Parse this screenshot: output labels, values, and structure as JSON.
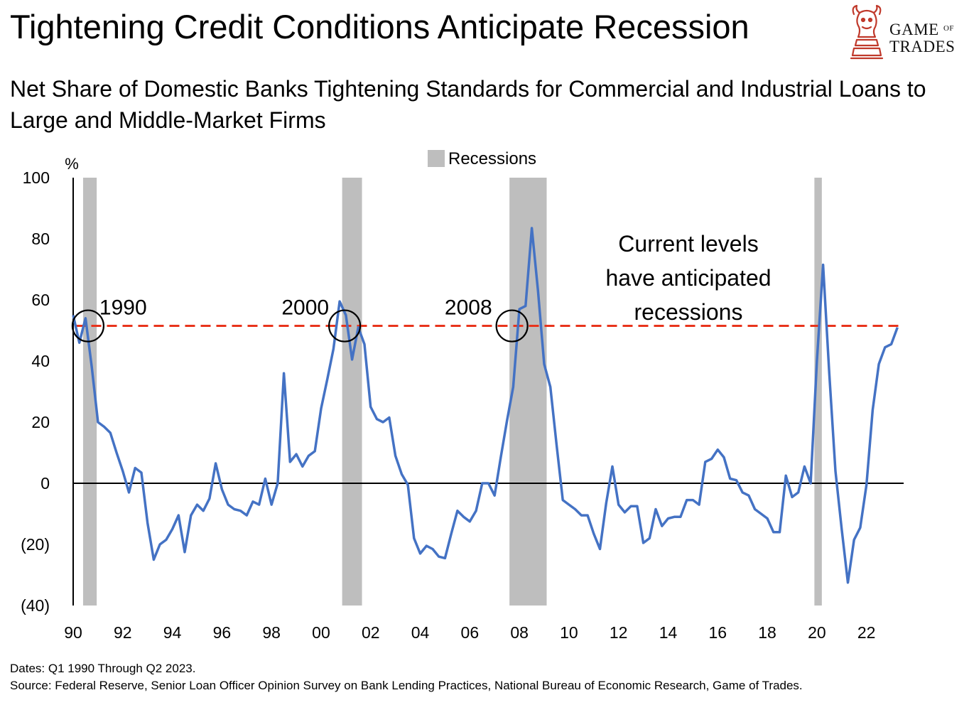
{
  "header": {
    "title": "Tightening Credit Conditions Anticipate Recession",
    "subtitle": "Net Share of Domestic Banks Tightening Standards for Commercial and Industrial Loans to Large and Middle-Market Firms"
  },
  "logo": {
    "line1": "GAME",
    "of": "OF",
    "line2": "TRADES",
    "icon": "bull-chess-knight-icon"
  },
  "footer": {
    "dates": "Dates: Q1 1990 Through Q2 2023.",
    "source": "Source: Federal Reserve, Senior Loan Officer Opinion Survey on Bank Lending Practices, National Bureau of Economic Research, Game of Trades."
  },
  "colors": {
    "line": "#4472C4",
    "recession": "#BEBEBE",
    "threshold": "#E8341C",
    "axis": "#000000"
  },
  "chart_data": {
    "type": "line",
    "title": "Net Share of Domestic Banks Tightening Standards for Commercial and Industrial Loans to Large and Middle-Market Firms",
    "ylabel": "%",
    "ylim": [
      -40,
      100
    ],
    "xlim": [
      1990,
      2023.5
    ],
    "yticks": [
      100,
      80,
      60,
      40,
      20,
      0,
      -20,
      -40
    ],
    "ytick_labels": [
      "100",
      "80",
      "60",
      "40",
      "20",
      "0",
      "(20)",
      "(40)"
    ],
    "xtick_labels": [
      "90",
      "92",
      "94",
      "96",
      "98",
      "00",
      "02",
      "04",
      "06",
      "08",
      "10",
      "12",
      "14",
      "16",
      "18",
      "20",
      "22"
    ],
    "xtick_years": [
      1990,
      1992,
      1994,
      1996,
      1998,
      2000,
      2002,
      2004,
      2006,
      2008,
      2010,
      2012,
      2014,
      2016,
      2018,
      2020,
      2022
    ],
    "legend": {
      "label": "Recessions",
      "position": "top-center"
    },
    "recessions": [
      {
        "start": 1990.4,
        "end": 1990.95
      },
      {
        "start": 2000.85,
        "end": 2001.65
      },
      {
        "start": 2007.6,
        "end": 2009.1
      },
      {
        "start": 2019.9,
        "end": 2020.2
      }
    ],
    "threshold": {
      "value": 51.5,
      "from": 1990.1
    },
    "series": [
      {
        "name": "Net share tightening (large and middle-market firms)",
        "x": [
          1990.0,
          1990.25,
          1990.5,
          1990.75,
          1991.0,
          1991.25,
          1991.5,
          1991.75,
          1992.0,
          1992.25,
          1992.5,
          1992.75,
          1993.0,
          1993.25,
          1993.5,
          1993.75,
          1994.0,
          1994.25,
          1994.5,
          1994.75,
          1995.0,
          1995.25,
          1995.5,
          1995.75,
          1996.0,
          1996.25,
          1996.5,
          1996.75,
          1997.0,
          1997.25,
          1997.5,
          1997.75,
          1998.0,
          1998.25,
          1998.5,
          1998.75,
          1999.0,
          1999.25,
          1999.5,
          1999.75,
          2000.0,
          2000.25,
          2000.5,
          2000.75,
          2001.0,
          2001.25,
          2001.5,
          2001.75,
          2002.0,
          2002.25,
          2002.5,
          2002.75,
          2003.0,
          2003.25,
          2003.5,
          2003.75,
          2004.0,
          2004.25,
          2004.5,
          2004.75,
          2005.0,
          2005.25,
          2005.5,
          2005.75,
          2006.0,
          2006.25,
          2006.5,
          2006.75,
          2007.0,
          2007.25,
          2007.5,
          2007.75,
          2008.0,
          2008.25,
          2008.5,
          2008.75,
          2009.0,
          2009.25,
          2009.5,
          2009.75,
          2010.0,
          2010.25,
          2010.5,
          2010.75,
          2011.0,
          2011.25,
          2011.5,
          2011.75,
          2012.0,
          2012.25,
          2012.5,
          2012.75,
          2013.0,
          2013.25,
          2013.5,
          2013.75,
          2014.0,
          2014.25,
          2014.5,
          2014.75,
          2015.0,
          2015.25,
          2015.5,
          2015.75,
          2016.0,
          2016.25,
          2016.5,
          2016.75,
          2017.0,
          2017.25,
          2017.5,
          2017.75,
          2018.0,
          2018.25,
          2018.5,
          2018.75,
          2019.0,
          2019.25,
          2019.5,
          2019.75,
          2020.0,
          2020.25,
          2020.5,
          2020.75,
          2021.0,
          2021.25,
          2021.5,
          2021.75,
          2022.0,
          2022.25,
          2022.5,
          2022.75,
          2023.0,
          2023.25
        ],
        "y": [
          55,
          46,
          54,
          38,
          20,
          18.5,
          16.5,
          10,
          4,
          -3,
          5,
          3.5,
          -13,
          -25,
          -20,
          -18.5,
          -15,
          -10.5,
          -22.5,
          -10.5,
          -7,
          -9,
          -5,
          6.5,
          -2,
          -7,
          -8.5,
          -9,
          -10.5,
          -6,
          -7,
          1.5,
          -7,
          0,
          36,
          7,
          9.5,
          5.5,
          9,
          10.5,
          24.5,
          34,
          44,
          59.5,
          55,
          40.5,
          51,
          45.5,
          25,
          21,
          20,
          21.5,
          9,
          3,
          -0.5,
          -18,
          -23,
          -20.5,
          -21.5,
          -24,
          -24.5,
          -16.5,
          -9,
          -11,
          -12.5,
          -9,
          0,
          0,
          -4,
          8.5,
          20.5,
          31.5,
          57,
          58,
          83.5,
          63,
          39,
          31.5,
          12.5,
          -5.5,
          -7,
          -8.5,
          -10.5,
          -10.5,
          -16.5,
          -21.5,
          -6.5,
          5.5,
          -7,
          -9.5,
          -7.5,
          -7.5,
          -19.5,
          -18,
          -8.5,
          -14,
          -11.5,
          -11,
          -11,
          -5.5,
          -5.5,
          -7,
          7,
          8,
          11,
          8.5,
          1.5,
          1,
          -3,
          -4,
          -8.5,
          -10,
          -11.5,
          -16,
          -16,
          2.5,
          -4.5,
          -3,
          5.5,
          0,
          40,
          71.5,
          36,
          4,
          -15,
          -32.5,
          -18.5,
          -14.5,
          -0.5,
          24,
          39,
          44.5,
          45.5,
          51
        ]
      }
    ],
    "annotations": [
      {
        "text": "1990",
        "x": 1990.6,
        "y": 51.5
      },
      {
        "text": "2000",
        "x": 2000.95,
        "y": 51.5
      },
      {
        "text": "2008",
        "x": 2007.7,
        "y": 51.5
      }
    ],
    "note_lines": [
      "Current levels",
      "have anticipated",
      "recessions"
    ]
  }
}
